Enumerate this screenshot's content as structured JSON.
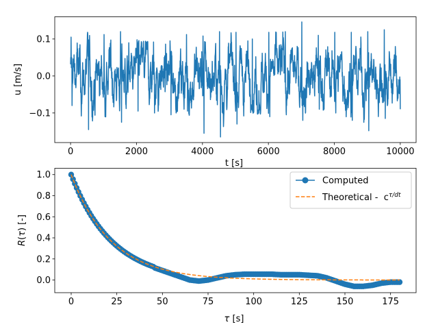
{
  "colors": {
    "series_blue": "#1f77b4",
    "series_orange": "#ff7f0e",
    "axis": "#000000"
  },
  "chart_data": [
    {
      "type": "line",
      "title": "",
      "xlabel": "t [s]",
      "ylabel": "u [m/s]",
      "xlim": [
        -480,
        10480
      ],
      "ylim": [
        -0.18,
        0.16
      ],
      "xticks": [
        0,
        2000,
        4000,
        6000,
        8000,
        10000
      ],
      "xtick_labels": [
        "0",
        "2000",
        "4000",
        "6000",
        "8000",
        "10000"
      ],
      "yticks": [
        -0.1,
        0.0,
        0.1
      ],
      "ytick_labels": [
        "−0.1",
        "0.0",
        "0.1"
      ],
      "series": [
        {
          "name": "u",
          "color": "#1f77b4",
          "x_start": 0,
          "x_end": 10000,
          "n_points": 2000,
          "description_values": {
            "mean": 0.0,
            "std": 0.05,
            "min": -0.165,
            "max": 0.146,
            "envelope_t": [
              0,
              500,
              1000,
              1500,
              2000,
              2500,
              3000,
              3500,
              4000,
              4500,
              5000,
              5500,
              6000,
              6500,
              7000,
              7500,
              8000,
              8500,
              9000,
              9500,
              10000
            ],
            "envelope_high": [
              0.105,
              0.118,
              0.112,
              0.12,
              0.098,
              0.092,
              0.095,
              0.112,
              0.108,
              0.12,
              0.118,
              0.1,
              0.118,
              0.12,
              0.146,
              0.11,
              0.118,
              0.118,
              0.12,
              0.125,
              0.11
            ],
            "envelope_low": [
              -0.08,
              -0.145,
              -0.11,
              -0.125,
              -0.095,
              -0.1,
              -0.105,
              -0.095,
              -0.155,
              -0.165,
              -0.13,
              -0.1,
              -0.11,
              -0.105,
              -0.12,
              -0.09,
              -0.1,
              -0.12,
              -0.148,
              -0.115,
              -0.09
            ]
          }
        }
      ]
    },
    {
      "type": "line",
      "title": "",
      "xlabel": "τ [s]",
      "ylabel": "R(τ) [-]",
      "xlim": [
        -9,
        189
      ],
      "ylim": [
        -0.12,
        1.06
      ],
      "xticks": [
        0,
        25,
        50,
        75,
        100,
        125,
        150,
        175
      ],
      "xtick_labels": [
        "0",
        "25",
        "50",
        "75",
        "100",
        "125",
        "150",
        "175"
      ],
      "yticks": [
        0.0,
        0.2,
        0.4,
        0.6,
        0.8,
        1.0
      ],
      "ytick_labels": [
        "0.0",
        "0.2",
        "0.4",
        "0.6",
        "0.8",
        "1.0"
      ],
      "legend": {
        "placement": "top-right",
        "entries": [
          "Computed",
          "Theoretical -  c"
        ]
      },
      "series": [
        {
          "name": "Computed",
          "color": "#1f77b4",
          "marker": "circle",
          "x": [
            0,
            5,
            10,
            15,
            20,
            25,
            30,
            35,
            40,
            45,
            50,
            55,
            60,
            65,
            70,
            75,
            80,
            85,
            90,
            95,
            100,
            105,
            110,
            115,
            120,
            125,
            130,
            135,
            140,
            145,
            150,
            155,
            160,
            165,
            170,
            175,
            180
          ],
          "y": [
            1.0,
            0.8,
            0.64,
            0.51,
            0.4,
            0.31,
            0.24,
            0.19,
            0.15,
            0.12,
            0.09,
            0.06,
            0.03,
            0.0,
            -0.01,
            0.0,
            0.02,
            0.04,
            0.05,
            0.055,
            0.055,
            0.055,
            0.055,
            0.05,
            0.05,
            0.05,
            0.045,
            0.04,
            0.02,
            -0.01,
            -0.04,
            -0.06,
            -0.06,
            -0.05,
            -0.03,
            -0.02,
            -0.02
          ]
        },
        {
          "name": "Theoretical -  c",
          "color": "#ff7f0e",
          "linestyle": "dashed",
          "function": "exp",
          "decay_time": 22,
          "x_range": [
            0,
            180
          ]
        }
      ]
    }
  ]
}
